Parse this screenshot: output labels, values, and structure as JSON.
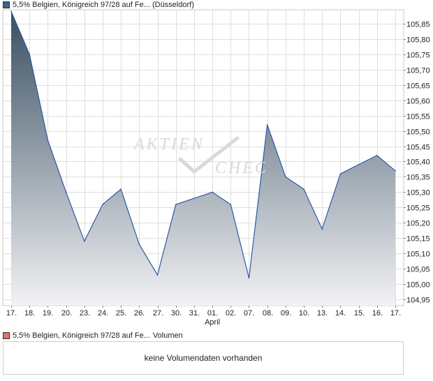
{
  "colors": {
    "price_legend_swatch": "#3f5f8f",
    "volume_legend_swatch": "#e07070",
    "line": "#2c5aa6",
    "area_top": "#3a4f62",
    "area_bottom": "#f2f2f4",
    "grid": "#dedede",
    "plot_border": "#c8c8c8",
    "watermark": "#d9d9d9"
  },
  "legend": {
    "price_label": "5,5% Belgien, Königreich 97/28 auf Fe... (Düsseldorf)",
    "volume_label": "5,5% Belgien, Königreich 97/28 auf Fe...",
    "volume_suffix": "Volumen"
  },
  "volume_box": {
    "message": "keine Volumendaten vorhanden"
  },
  "watermark": {
    "line1": "AKTIEN",
    "line2": "CHECK"
  },
  "chart_data": {
    "type": "area",
    "categories": [
      "17.",
      "18.",
      "19.",
      "20.",
      "23.",
      "24.",
      "25.",
      "26.",
      "27.",
      "30.",
      "31.",
      "01.",
      "02.",
      "07.",
      "08.",
      "09.",
      "10.",
      "13.",
      "14.",
      "15.",
      "16.",
      "17."
    ],
    "month_label": "April",
    "month_label_index": 11,
    "series": [
      {
        "values": [
          105.89,
          105.75,
          105.47,
          105.3,
          105.14,
          105.26,
          105.31,
          105.13,
          105.03,
          105.26,
          105.28,
          105.3,
          105.26,
          105.02,
          105.52,
          105.35,
          105.31,
          105.18,
          105.36,
          105.39,
          105.42,
          105.37
        ]
      }
    ],
    "y_ticks": [
      "105,85",
      "105,80",
      "105,75",
      "105,70",
      "105,65",
      "105,60",
      "105,55",
      "105,50",
      "105,45",
      "105,40",
      "105,35",
      "105,30",
      "105,25",
      "105,20",
      "105,15",
      "105,10",
      "105,05",
      "105,00",
      "104,95"
    ],
    "y_tick_values": [
      105.85,
      105.8,
      105.75,
      105.7,
      105.65,
      105.6,
      105.55,
      105.5,
      105.45,
      105.4,
      105.35,
      105.3,
      105.25,
      105.2,
      105.15,
      105.1,
      105.05,
      105.0,
      104.95
    ],
    "ylim": [
      104.93,
      105.895
    ],
    "grid": true,
    "y_axis_position": "right",
    "title": "",
    "xlabel": "",
    "ylabel": ""
  }
}
